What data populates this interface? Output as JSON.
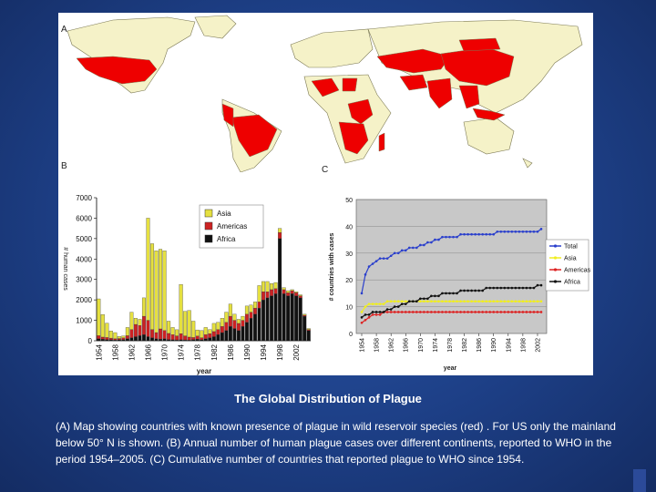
{
  "panel_labels": {
    "a": "A",
    "b": "B",
    "c": "C"
  },
  "colors": {
    "endemic": "#ee0000",
    "land": "#f5f2c8",
    "coast": "#7d7a55",
    "asia": "#e5e040",
    "americas": "#cc2222",
    "africa": "#111111",
    "total": "#2a3fcc",
    "asia_line": "#f0ee20",
    "americas_line": "#dd2222",
    "africa_line": "#111111"
  },
  "caption": {
    "title": "The Global Distribution of Plague",
    "text": "(A) Map showing countries with known presence of plague in wild reservoir species (red) . For US only the mainland below 50° N is shown. (B) Annual number of human plague cases over different continents, reported to WHO in the period 1954–2005. (C) Cumulative number of countries that reported plague to WHO since 1954."
  },
  "chart_data": [
    {
      "id": "B",
      "type": "bar",
      "stacked": true,
      "xlabel": "year",
      "ylabel": "# human cases",
      "ylim": [
        0,
        7000
      ],
      "yticks": [
        0,
        1000,
        2000,
        3000,
        4000,
        5000,
        6000,
        7000
      ],
      "xtick_labels": [
        "1954",
        "1958",
        "1962",
        "1966",
        "1970",
        "1974",
        "1978",
        "1982",
        "1986",
        "1990",
        "1994",
        "1998",
        "2002"
      ],
      "categories": [
        1954,
        1955,
        1956,
        1957,
        1958,
        1959,
        1960,
        1961,
        1962,
        1963,
        1964,
        1965,
        1966,
        1967,
        1968,
        1969,
        1970,
        1971,
        1972,
        1973,
        1974,
        1975,
        1976,
        1977,
        1978,
        1979,
        1980,
        1981,
        1982,
        1983,
        1984,
        1985,
        1986,
        1987,
        1988,
        1989,
        1990,
        1991,
        1992,
        1993,
        1994,
        1995,
        1996,
        1997,
        1998,
        1999,
        2000,
        2001,
        2002,
        2003,
        2004,
        2005
      ],
      "legend": [
        "Asia",
        "Americas",
        "Africa"
      ],
      "series": [
        {
          "name": "Africa",
          "values": [
            100,
            80,
            60,
            50,
            40,
            50,
            60,
            100,
            150,
            200,
            250,
            300,
            200,
            150,
            100,
            80,
            100,
            60,
            50,
            40,
            50,
            40,
            30,
            60,
            80,
            50,
            100,
            150,
            200,
            300,
            400,
            500,
            700,
            600,
            500,
            700,
            900,
            1100,
            1300,
            1600,
            2000,
            2100,
            2200,
            2300,
            5000,
            2300,
            2200,
            2300,
            2200,
            2100,
            1200,
            500
          ]
        },
        {
          "name": "Americas",
          "values": [
            150,
            100,
            100,
            80,
            60,
            60,
            80,
            150,
            400,
            600,
            500,
            900,
            800,
            400,
            300,
            500,
            400,
            300,
            250,
            200,
            300,
            200,
            150,
            100,
            150,
            100,
            200,
            200,
            250,
            250,
            300,
            400,
            500,
            400,
            350,
            300,
            400,
            300,
            300,
            300,
            400,
            300,
            300,
            250,
            300,
            200,
            150,
            150,
            150,
            100,
            50,
            50
          ]
        },
        {
          "name": "Asia",
          "values": [
            1800,
            1100,
            700,
            350,
            300,
            100,
            100,
            400,
            850,
            300,
            300,
            900,
            5000,
            4200,
            4000,
            3900,
            3900,
            600,
            350,
            300,
            2400,
            1200,
            1300,
            800,
            300,
            350,
            350,
            200,
            400,
            350,
            400,
            500,
            600,
            300,
            200,
            200,
            400,
            350,
            300,
            800,
            500,
            500,
            300,
            300,
            200,
            100,
            100,
            50,
            50,
            50,
            50,
            50
          ]
        }
      ]
    },
    {
      "id": "C",
      "type": "line",
      "xlabel": "year",
      "ylabel": "# countries with cases",
      "ylim": [
        0,
        50
      ],
      "yticks": [
        0,
        10,
        20,
        30,
        40,
        50
      ],
      "xtick_labels": [
        "1954",
        "1958",
        "1962",
        "1966",
        "1970",
        "1974",
        "1978",
        "1982",
        "1986",
        "1990",
        "1994",
        "1998",
        "2002"
      ],
      "x": [
        1954,
        1955,
        1956,
        1957,
        1958,
        1959,
        1960,
        1961,
        1962,
        1963,
        1964,
        1965,
        1966,
        1967,
        1968,
        1969,
        1970,
        1971,
        1972,
        1973,
        1974,
        1975,
        1976,
        1977,
        1978,
        1979,
        1980,
        1981,
        1982,
        1983,
        1984,
        1985,
        1986,
        1987,
        1988,
        1989,
        1990,
        1991,
        1992,
        1993,
        1994,
        1995,
        1996,
        1997,
        1998,
        1999,
        2000,
        2001,
        2002,
        2003
      ],
      "legend": [
        "Total",
        "Asia",
        "Americas",
        "Africa"
      ],
      "series": [
        {
          "name": "Total",
          "values": [
            15,
            22,
            25,
            26,
            27,
            28,
            28,
            28,
            29,
            30,
            30,
            31,
            31,
            32,
            32,
            32,
            33,
            33,
            34,
            34,
            35,
            35,
            36,
            36,
            36,
            36,
            36,
            37,
            37,
            37,
            37,
            37,
            37,
            37,
            37,
            37,
            37,
            38,
            38,
            38,
            38,
            38,
            38,
            38,
            38,
            38,
            38,
            38,
            38,
            39
          ]
        },
        {
          "name": "Asia",
          "values": [
            8,
            10,
            11,
            11,
            11,
            11,
            11,
            12,
            12,
            12,
            12,
            12,
            12,
            12,
            12,
            12,
            12,
            12,
            12,
            12,
            12,
            12,
            12,
            12,
            12,
            12,
            12,
            12,
            12,
            12,
            12,
            12,
            12,
            12,
            12,
            12,
            12,
            12,
            12,
            12,
            12,
            12,
            12,
            12,
            12,
            12,
            12,
            12,
            12,
            12
          ]
        },
        {
          "name": "Americas",
          "values": [
            4,
            5,
            6,
            7,
            7,
            7,
            8,
            8,
            8,
            8,
            8,
            8,
            8,
            8,
            8,
            8,
            8,
            8,
            8,
            8,
            8,
            8,
            8,
            8,
            8,
            8,
            8,
            8,
            8,
            8,
            8,
            8,
            8,
            8,
            8,
            8,
            8,
            8,
            8,
            8,
            8,
            8,
            8,
            8,
            8,
            8,
            8,
            8,
            8,
            8
          ]
        },
        {
          "name": "Africa",
          "values": [
            6,
            7,
            7,
            8,
            8,
            8,
            8,
            9,
            9,
            10,
            10,
            11,
            11,
            12,
            12,
            12,
            13,
            13,
            13,
            14,
            14,
            14,
            15,
            15,
            15,
            15,
            15,
            16,
            16,
            16,
            16,
            16,
            16,
            16,
            17,
            17,
            17,
            17,
            17,
            17,
            17,
            17,
            17,
            17,
            17,
            17,
            17,
            17,
            18,
            18
          ]
        }
      ]
    }
  ]
}
